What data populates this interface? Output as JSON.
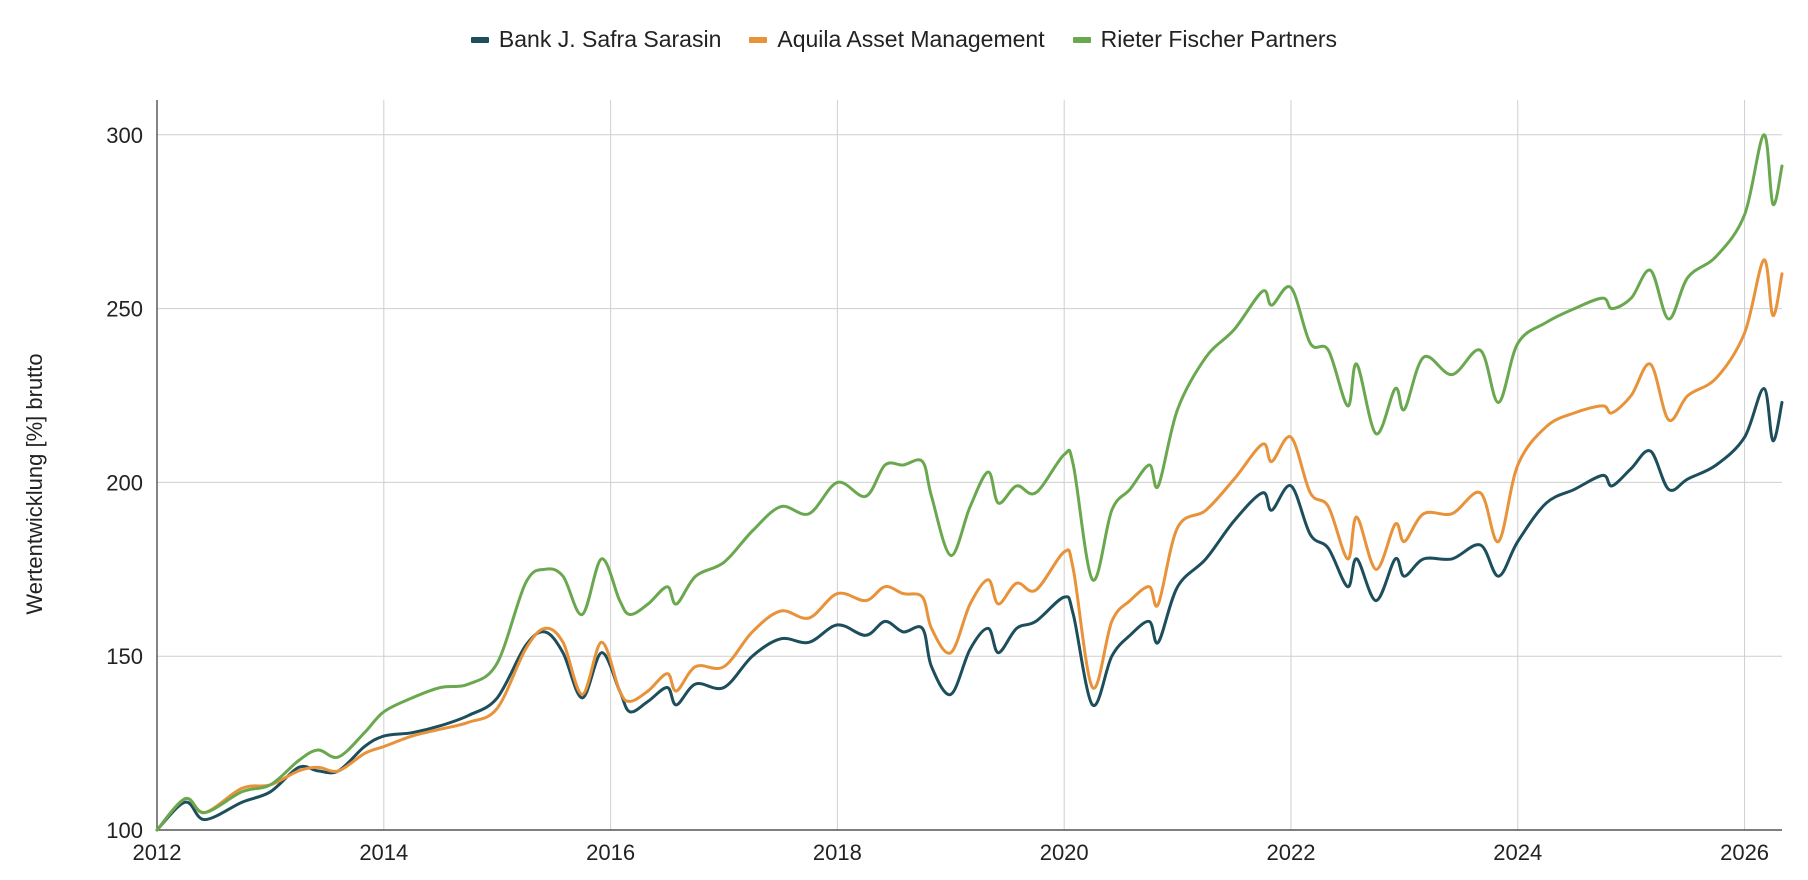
{
  "chart_data": {
    "type": "line",
    "ylabel": "Wertentwicklung [%] brutto",
    "xlabel": "",
    "xlim": [
      2012.0,
      2026.33
    ],
    "ylim": [
      100,
      310
    ],
    "x_ticks": [
      "2012",
      "2014",
      "2016",
      "2018",
      "2020",
      "2022",
      "2024",
      "2026"
    ],
    "y_ticks": [
      "100",
      "150",
      "200",
      "250",
      "300"
    ],
    "grid": true,
    "legend_position": "top-center",
    "series": [
      {
        "name": "Bank J. Safra Sarasin",
        "color": "#1d4e5c",
        "points": [
          [
            2012.0,
            100
          ],
          [
            2012.25,
            108
          ],
          [
            2012.42,
            103
          ],
          [
            2012.75,
            108
          ],
          [
            2013.0,
            111
          ],
          [
            2013.25,
            118
          ],
          [
            2013.42,
            117
          ],
          [
            2013.6,
            117
          ],
          [
            2013.83,
            124
          ],
          [
            2014.0,
            127
          ],
          [
            2014.25,
            128
          ],
          [
            2014.5,
            130
          ],
          [
            2014.75,
            133
          ],
          [
            2015.0,
            138
          ],
          [
            2015.25,
            153
          ],
          [
            2015.42,
            157
          ],
          [
            2015.58,
            151
          ],
          [
            2015.75,
            138
          ],
          [
            2015.92,
            151
          ],
          [
            2016.08,
            140
          ],
          [
            2016.17,
            134
          ],
          [
            2016.33,
            137
          ],
          [
            2016.5,
            141
          ],
          [
            2016.58,
            136
          ],
          [
            2016.75,
            142
          ],
          [
            2017.0,
            141
          ],
          [
            2017.25,
            150
          ],
          [
            2017.5,
            155
          ],
          [
            2017.75,
            154
          ],
          [
            2018.0,
            159
          ],
          [
            2018.25,
            156
          ],
          [
            2018.42,
            160
          ],
          [
            2018.58,
            157
          ],
          [
            2018.75,
            158
          ],
          [
            2018.83,
            147
          ],
          [
            2019.0,
            139
          ],
          [
            2019.17,
            152
          ],
          [
            2019.33,
            158
          ],
          [
            2019.42,
            151
          ],
          [
            2019.58,
            158
          ],
          [
            2019.75,
            160
          ],
          [
            2020.0,
            167
          ],
          [
            2020.08,
            162
          ],
          [
            2020.25,
            136
          ],
          [
            2020.42,
            150
          ],
          [
            2020.58,
            156
          ],
          [
            2020.75,
            160
          ],
          [
            2020.83,
            154
          ],
          [
            2021.0,
            170
          ],
          [
            2021.25,
            178
          ],
          [
            2021.5,
            189
          ],
          [
            2021.75,
            197
          ],
          [
            2021.83,
            192
          ],
          [
            2022.0,
            199
          ],
          [
            2022.17,
            185
          ],
          [
            2022.33,
            181
          ],
          [
            2022.5,
            170
          ],
          [
            2022.58,
            178
          ],
          [
            2022.75,
            166
          ],
          [
            2022.92,
            178
          ],
          [
            2023.0,
            173
          ],
          [
            2023.17,
            178
          ],
          [
            2023.42,
            178
          ],
          [
            2023.67,
            182
          ],
          [
            2023.83,
            173
          ],
          [
            2024.0,
            183
          ],
          [
            2024.25,
            194
          ],
          [
            2024.5,
            198
          ],
          [
            2024.75,
            202
          ],
          [
            2024.83,
            199
          ],
          [
            2025.0,
            204
          ],
          [
            2025.17,
            209
          ],
          [
            2025.33,
            198
          ],
          [
            2025.5,
            201
          ],
          [
            2025.75,
            205
          ],
          [
            2026.0,
            213
          ],
          [
            2026.17,
            227
          ],
          [
            2026.25,
            212
          ],
          [
            2026.33,
            223
          ]
        ]
      },
      {
        "name": "Aquila Asset Management",
        "color": "#e8923a",
        "points": [
          [
            2012.0,
            100
          ],
          [
            2012.25,
            109
          ],
          [
            2012.42,
            105
          ],
          [
            2012.75,
            112
          ],
          [
            2013.0,
            113
          ],
          [
            2013.25,
            117
          ],
          [
            2013.42,
            118
          ],
          [
            2013.6,
            117
          ],
          [
            2013.83,
            122
          ],
          [
            2014.0,
            124
          ],
          [
            2014.25,
            127
          ],
          [
            2014.5,
            129
          ],
          [
            2014.75,
            131
          ],
          [
            2015.0,
            135
          ],
          [
            2015.25,
            152
          ],
          [
            2015.42,
            158
          ],
          [
            2015.58,
            154
          ],
          [
            2015.75,
            139
          ],
          [
            2015.92,
            154
          ],
          [
            2016.08,
            140
          ],
          [
            2016.17,
            137
          ],
          [
            2016.33,
            140
          ],
          [
            2016.5,
            145
          ],
          [
            2016.58,
            140
          ],
          [
            2016.75,
            147
          ],
          [
            2017.0,
            147
          ],
          [
            2017.25,
            157
          ],
          [
            2017.5,
            163
          ],
          [
            2017.75,
            161
          ],
          [
            2018.0,
            168
          ],
          [
            2018.25,
            166
          ],
          [
            2018.42,
            170
          ],
          [
            2018.58,
            168
          ],
          [
            2018.75,
            167
          ],
          [
            2018.83,
            158
          ],
          [
            2019.0,
            151
          ],
          [
            2019.17,
            165
          ],
          [
            2019.33,
            172
          ],
          [
            2019.42,
            165
          ],
          [
            2019.58,
            171
          ],
          [
            2019.75,
            169
          ],
          [
            2020.0,
            180
          ],
          [
            2020.08,
            175
          ],
          [
            2020.25,
            141
          ],
          [
            2020.42,
            160
          ],
          [
            2020.58,
            166
          ],
          [
            2020.75,
            170
          ],
          [
            2020.83,
            165
          ],
          [
            2021.0,
            187
          ],
          [
            2021.25,
            192
          ],
          [
            2021.5,
            201
          ],
          [
            2021.75,
            211
          ],
          [
            2021.83,
            206
          ],
          [
            2022.0,
            213
          ],
          [
            2022.17,
            197
          ],
          [
            2022.33,
            193
          ],
          [
            2022.5,
            178
          ],
          [
            2022.58,
            190
          ],
          [
            2022.75,
            175
          ],
          [
            2022.92,
            188
          ],
          [
            2023.0,
            183
          ],
          [
            2023.17,
            191
          ],
          [
            2023.42,
            191
          ],
          [
            2023.67,
            197
          ],
          [
            2023.83,
            183
          ],
          [
            2024.0,
            205
          ],
          [
            2024.25,
            216
          ],
          [
            2024.5,
            220
          ],
          [
            2024.75,
            222
          ],
          [
            2024.83,
            220
          ],
          [
            2025.0,
            225
          ],
          [
            2025.17,
            234
          ],
          [
            2025.33,
            218
          ],
          [
            2025.5,
            225
          ],
          [
            2025.75,
            230
          ],
          [
            2026.0,
            243
          ],
          [
            2026.17,
            264
          ],
          [
            2026.25,
            248
          ],
          [
            2026.33,
            260
          ]
        ]
      },
      {
        "name": "Rieter Fischer Partners",
        "color": "#6aa84f",
        "points": [
          [
            2012.0,
            100
          ],
          [
            2012.25,
            109
          ],
          [
            2012.42,
            105
          ],
          [
            2012.75,
            111
          ],
          [
            2013.0,
            113
          ],
          [
            2013.25,
            120
          ],
          [
            2013.42,
            123
          ],
          [
            2013.6,
            121
          ],
          [
            2013.83,
            128
          ],
          [
            2014.0,
            134
          ],
          [
            2014.25,
            138
          ],
          [
            2014.5,
            141
          ],
          [
            2014.75,
            142
          ],
          [
            2015.0,
            148
          ],
          [
            2015.25,
            171
          ],
          [
            2015.42,
            175
          ],
          [
            2015.58,
            173
          ],
          [
            2015.75,
            162
          ],
          [
            2015.92,
            178
          ],
          [
            2016.08,
            166
          ],
          [
            2016.17,
            162
          ],
          [
            2016.33,
            165
          ],
          [
            2016.5,
            170
          ],
          [
            2016.58,
            165
          ],
          [
            2016.75,
            173
          ],
          [
            2017.0,
            177
          ],
          [
            2017.25,
            186
          ],
          [
            2017.5,
            193
          ],
          [
            2017.75,
            191
          ],
          [
            2018.0,
            200
          ],
          [
            2018.25,
            196
          ],
          [
            2018.42,
            205
          ],
          [
            2018.58,
            205
          ],
          [
            2018.75,
            206
          ],
          [
            2018.83,
            196
          ],
          [
            2019.0,
            179
          ],
          [
            2019.17,
            193
          ],
          [
            2019.33,
            203
          ],
          [
            2019.42,
            194
          ],
          [
            2019.58,
            199
          ],
          [
            2019.75,
            197
          ],
          [
            2020.0,
            208
          ],
          [
            2020.08,
            205
          ],
          [
            2020.25,
            172
          ],
          [
            2020.42,
            192
          ],
          [
            2020.58,
            198
          ],
          [
            2020.75,
            205
          ],
          [
            2020.83,
            199
          ],
          [
            2021.0,
            221
          ],
          [
            2021.25,
            236
          ],
          [
            2021.5,
            244
          ],
          [
            2021.75,
            255
          ],
          [
            2021.83,
            251
          ],
          [
            2022.0,
            256
          ],
          [
            2022.17,
            240
          ],
          [
            2022.33,
            238
          ],
          [
            2022.5,
            222
          ],
          [
            2022.58,
            234
          ],
          [
            2022.75,
            214
          ],
          [
            2022.92,
            227
          ],
          [
            2023.0,
            221
          ],
          [
            2023.17,
            236
          ],
          [
            2023.42,
            231
          ],
          [
            2023.67,
            238
          ],
          [
            2023.83,
            223
          ],
          [
            2024.0,
            240
          ],
          [
            2024.25,
            246
          ],
          [
            2024.5,
            250
          ],
          [
            2024.75,
            253
          ],
          [
            2024.83,
            250
          ],
          [
            2025.0,
            253
          ],
          [
            2025.17,
            261
          ],
          [
            2025.33,
            247
          ],
          [
            2025.5,
            259
          ],
          [
            2025.75,
            265
          ],
          [
            2026.0,
            277
          ],
          [
            2026.17,
            300
          ],
          [
            2026.25,
            280
          ],
          [
            2026.33,
            291
          ]
        ]
      }
    ]
  }
}
